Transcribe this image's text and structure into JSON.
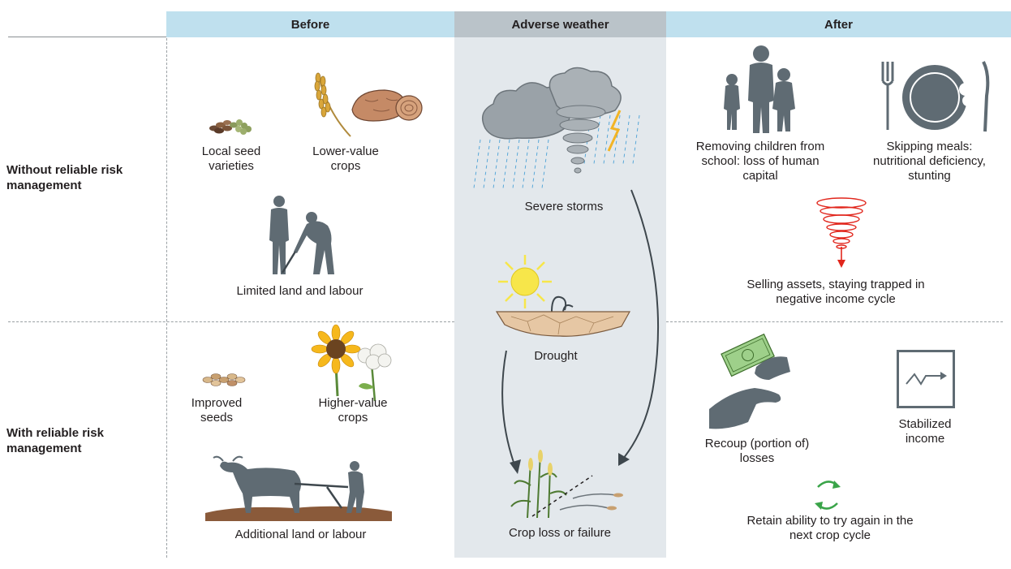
{
  "headers": {
    "before": "Before",
    "adverse": "Adverse weather",
    "after": "After"
  },
  "rows": {
    "without": "Without reliable risk management",
    "with": "With reliable risk management"
  },
  "before_without": {
    "seeds": "Local seed varieties",
    "crops": "Lower-value crops",
    "land": "Limited land and labour"
  },
  "before_with": {
    "seeds": "Improved seeds",
    "crops": "Higher-value crops",
    "land": "Additional land or labour"
  },
  "adverse": {
    "storms": "Severe storms",
    "drought": "Drought",
    "crop_loss": "Crop loss or failure"
  },
  "after_without": {
    "children": "Removing children from school: loss of human capital",
    "meals": "Skipping meals: nutritional deficiency, stunting",
    "assets": "Selling assets, staying trapped in negative income cycle"
  },
  "after_with": {
    "recoup": "Recoup (portion of) losses",
    "stabilized": "Stabilized income",
    "retain": "Retain ability to try again in the next crop cycle"
  },
  "colors": {
    "header_blue": "#bfe0ee",
    "header_gray": "#bac3c9",
    "middle_column": "#e3e8ec",
    "silhouette": "#5f6b73",
    "cloud": "#9aa2a8",
    "spiral_red": "#e1261c",
    "cycle_green": "#3aa449",
    "sun": "#f7e64a"
  },
  "icons": [
    "seeds-icon",
    "wheat-icon",
    "sweet-potato-icon",
    "farmers-icon",
    "sunflower-icon",
    "cotton-icon",
    "ox-plough-icon",
    "storm-icon",
    "tornado-icon",
    "sun-icon",
    "cracked-soil-icon",
    "crop-failure-icon",
    "family-icon",
    "empty-plate-icon",
    "downward-spiral-icon",
    "money-hands-icon",
    "stable-chart-icon",
    "cycle-arrows-icon"
  ]
}
